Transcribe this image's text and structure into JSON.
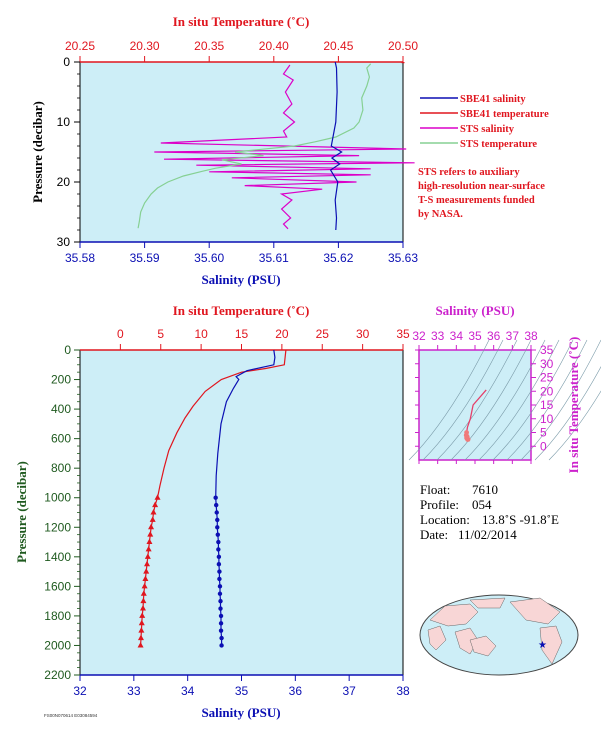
{
  "colors": {
    "plot_bg": "#cdeef7",
    "temperature": "#e0161f",
    "salinity": "#0b0fb3",
    "sts_salinity": "#dc00c8",
    "sts_temperature": "#86d093",
    "ts_axis": "#cc22cc",
    "pressure_axis": "#1f5a1f",
    "land": "#f8d6d6",
    "ocean": "#cdeef7"
  },
  "legend": {
    "items": [
      {
        "label": "SBE41 salinity",
        "color": "#0b0fb3"
      },
      {
        "label": "SBE41 temperature",
        "color": "#e0161f"
      },
      {
        "label": "STS salinity",
        "color": "#dc00c8"
      },
      {
        "label": "STS temperature",
        "color": "#86d093"
      }
    ],
    "note": [
      "STS refers to auxiliary",
      "high-resolution near-surface",
      "T-S measurements funded",
      "by NASA."
    ]
  },
  "info": {
    "float_label": "Float:",
    "float": "7610",
    "profile_label": "Profile:",
    "profile": "054",
    "location_label": "Location:",
    "location": "13.8˚S  -91.8˚E",
    "date_label": "Date:",
    "date": "11/02/2014"
  },
  "footer_code": "FS00N070614 E03084594",
  "chart_data": [
    {
      "type": "line",
      "panel": "near-surface",
      "top_axis_label": "In situ Temperature (˚C)",
      "bottom_axis_label": "Salinity (PSU)",
      "left_axis_label": "Pressure (decibar)",
      "temperature_range": [
        20.25,
        20.5
      ],
      "temperature_ticks": [
        "20.25",
        "20.30",
        "20.35",
        "20.40",
        "20.45",
        "20.50"
      ],
      "salinity_range": [
        35.58,
        35.63
      ],
      "salinity_ticks": [
        "35.58",
        "35.59",
        "35.60",
        "35.61",
        "35.62",
        "35.63"
      ],
      "pressure_range": [
        0,
        30
      ],
      "pressure_ticks": [
        "0",
        "10",
        "20",
        "30"
      ],
      "series": [
        {
          "name": "SBE41 temperature",
          "axis": "temperature",
          "points": [
            [
              20.5,
              0
            ],
            [
              20.5,
              0.2
            ]
          ]
        },
        {
          "name": "SBE41 salinity",
          "axis": "salinity",
          "points": [
            [
              35.6195,
              0
            ],
            [
              35.6197,
              1
            ],
            [
              35.6198,
              5
            ],
            [
              35.6196,
              10
            ],
            [
              35.6189,
              14
            ],
            [
              35.6205,
              15
            ],
            [
              35.619,
              16
            ],
            [
              35.6202,
              17
            ],
            [
              35.6188,
              18
            ],
            [
              35.6199,
              20
            ],
            [
              35.6195,
              23
            ],
            [
              35.6197,
              26
            ],
            [
              35.6196,
              28
            ]
          ]
        },
        {
          "name": "STS salinity",
          "axis": "salinity",
          "points": [
            [
              35.6125,
              0.5
            ],
            [
              35.6115,
              2
            ],
            [
              35.613,
              3
            ],
            [
              35.6118,
              5
            ],
            [
              35.6128,
              7
            ],
            [
              35.6115,
              8.5
            ],
            [
              35.6132,
              10
            ],
            [
              35.6115,
              11.5
            ],
            [
              35.612,
              12.5
            ],
            [
              35.5925,
              13.5
            ],
            [
              35.6305,
              14.5
            ],
            [
              35.5915,
              15
            ],
            [
              35.6232,
              15.6
            ],
            [
              35.593,
              16.2
            ],
            [
              35.6318,
              16.8
            ],
            [
              35.598,
              17.2
            ],
            [
              35.625,
              17.8
            ],
            [
              35.6,
              18.3
            ],
            [
              35.625,
              18.8
            ],
            [
              35.6035,
              19.3
            ],
            [
              35.6228,
              20
            ],
            [
              35.6055,
              20.6
            ],
            [
              35.6175,
              21.2
            ],
            [
              35.6112,
              22
            ],
            [
              35.6128,
              23
            ],
            [
              35.6112,
              24.5
            ],
            [
              35.6126,
              26
            ],
            [
              35.6115,
              27
            ],
            [
              35.6122,
              27.8
            ]
          ]
        },
        {
          "name": "STS temperature",
          "axis": "temperature",
          "points": [
            [
              20.475,
              0.3
            ],
            [
              20.472,
              1
            ],
            [
              20.474,
              2.5
            ],
            [
              20.472,
              4
            ],
            [
              20.468,
              6
            ],
            [
              20.469,
              8
            ],
            [
              20.466,
              10
            ],
            [
              20.462,
              11
            ],
            [
              20.448,
              12.5
            ],
            [
              20.432,
              13.3
            ],
            [
              20.416,
              14
            ],
            [
              20.37,
              15
            ],
            [
              20.392,
              15.6
            ],
            [
              20.36,
              16.3
            ],
            [
              20.375,
              17
            ],
            [
              20.355,
              17.7
            ],
            [
              20.345,
              18.2
            ],
            [
              20.33,
              19
            ],
            [
              20.318,
              20
            ],
            [
              20.31,
              21
            ],
            [
              20.305,
              22
            ],
            [
              20.3,
              23.5
            ],
            [
              20.297,
              25
            ],
            [
              20.296,
              26.5
            ],
            [
              20.295,
              27.7
            ]
          ]
        }
      ]
    },
    {
      "type": "line",
      "panel": "full-profile",
      "top_axis_label": "In situ Temperature (˚C)",
      "bottom_axis_label": "Salinity (PSU)",
      "left_axis_label": "Pressure (decibar)",
      "temperature_range": [
        -5,
        35
      ],
      "temperature_ticks": [
        "0",
        "5",
        "10",
        "15",
        "20",
        "25",
        "30",
        "35"
      ],
      "salinity_range": [
        32,
        38
      ],
      "salinity_ticks": [
        "32",
        "33",
        "34",
        "35",
        "36",
        "37",
        "38"
      ],
      "pressure_range": [
        0,
        2200
      ],
      "pressure_ticks": [
        "0",
        "200",
        "400",
        "600",
        "800",
        "1000",
        "1200",
        "1400",
        "1600",
        "1800",
        "2000",
        "2200"
      ],
      "series": [
        {
          "name": "Temperature",
          "axis": "temperature",
          "points": [
            [
              20.5,
              0
            ],
            [
              20.4,
              50
            ],
            [
              20.3,
              100
            ],
            [
              18,
              125
            ],
            [
              15,
              150
            ],
            [
              12.5,
              200
            ],
            [
              10.5,
              280
            ],
            [
              9,
              380
            ],
            [
              8,
              460
            ],
            [
              7,
              560
            ],
            [
              6,
              680
            ],
            [
              5.4,
              800
            ],
            [
              4.9,
              920
            ],
            [
              4.6,
              1000
            ]
          ],
          "marked_points": [
            [
              4.6,
              1000
            ],
            [
              4.3,
              1050
            ],
            [
              4.1,
              1100
            ],
            [
              4.0,
              1150
            ],
            [
              3.8,
              1200
            ],
            [
              3.7,
              1250
            ],
            [
              3.6,
              1300
            ],
            [
              3.5,
              1350
            ],
            [
              3.4,
              1400
            ],
            [
              3.3,
              1450
            ],
            [
              3.2,
              1500
            ],
            [
              3.1,
              1550
            ],
            [
              3.0,
              1600
            ],
            [
              2.9,
              1650
            ],
            [
              2.85,
              1700
            ],
            [
              2.8,
              1750
            ],
            [
              2.7,
              1800
            ],
            [
              2.65,
              1850
            ],
            [
              2.6,
              1900
            ],
            [
              2.55,
              1950
            ],
            [
              2.5,
              2000
            ]
          ]
        },
        {
          "name": "Salinity",
          "axis": "salinity",
          "points": [
            [
              35.6,
              0
            ],
            [
              35.62,
              50
            ],
            [
              35.6,
              100
            ],
            [
              35.1,
              140
            ],
            [
              34.9,
              180
            ],
            [
              34.95,
              200
            ],
            [
              34.85,
              260
            ],
            [
              34.72,
              350
            ],
            [
              34.62,
              500
            ],
            [
              34.56,
              700
            ],
            [
              34.53,
              850
            ],
            [
              34.52,
              1000
            ]
          ],
          "marked_points": [
            [
              34.52,
              1000
            ],
            [
              34.53,
              1050
            ],
            [
              34.54,
              1100
            ],
            [
              34.55,
              1150
            ],
            [
              34.55,
              1200
            ],
            [
              34.56,
              1250
            ],
            [
              34.57,
              1300
            ],
            [
              34.57,
              1350
            ],
            [
              34.58,
              1400
            ],
            [
              34.58,
              1450
            ],
            [
              34.59,
              1500
            ],
            [
              34.59,
              1550
            ],
            [
              34.6,
              1600
            ],
            [
              34.6,
              1650
            ],
            [
              34.61,
              1700
            ],
            [
              34.61,
              1750
            ],
            [
              34.62,
              1800
            ],
            [
              34.62,
              1850
            ],
            [
              34.62,
              1900
            ],
            [
              34.63,
              1950
            ],
            [
              34.63,
              2000
            ]
          ]
        }
      ]
    },
    {
      "type": "scatter",
      "panel": "T-S diagram",
      "top_axis_label": "Salinity (PSU)",
      "right_axis_label": "In situ Temperature (˚C)",
      "salinity_range": [
        32,
        38
      ],
      "salinity_ticks": [
        "32",
        "33",
        "34",
        "35",
        "36",
        "37",
        "38"
      ],
      "temperature_range": [
        -5,
        35
      ],
      "temperature_ticks": [
        "0",
        "5",
        "10",
        "15",
        "20",
        "25",
        "30",
        "35"
      ],
      "series": [
        {
          "name": "T-S",
          "points": [
            [
              35.6,
              20.5
            ],
            [
              34.9,
              15
            ],
            [
              34.75,
              10
            ],
            [
              34.6,
              7
            ],
            [
              34.55,
              5
            ],
            [
              34.53,
              4
            ],
            [
              34.55,
              3
            ],
            [
              34.6,
              2.5
            ],
            [
              34.63,
              2.5
            ]
          ]
        }
      ]
    }
  ],
  "map": {
    "marker": "float-position-star"
  }
}
